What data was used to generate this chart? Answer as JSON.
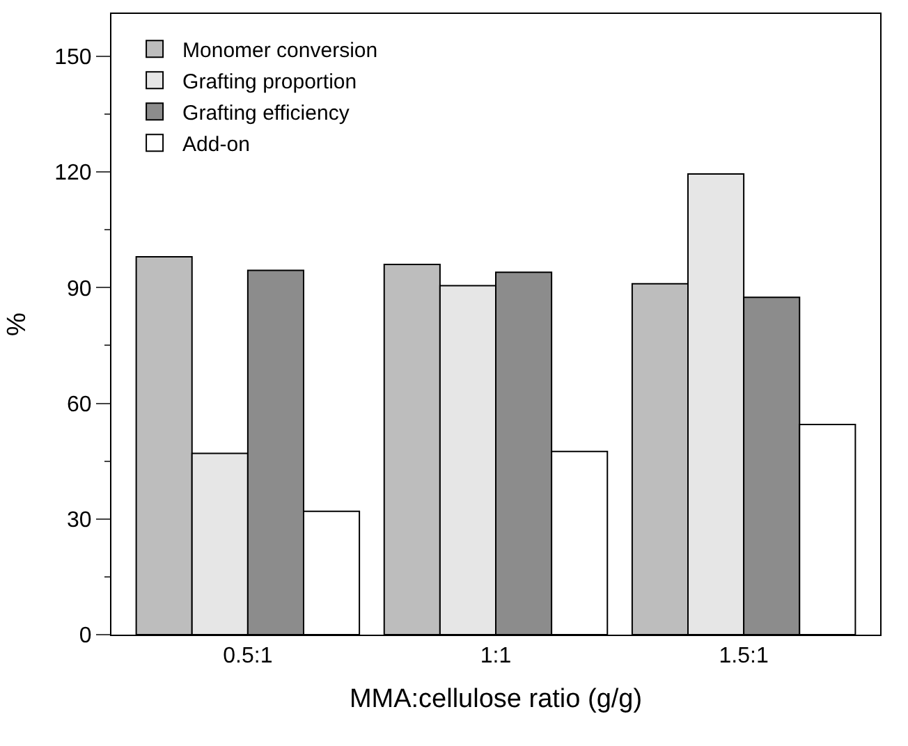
{
  "chart_data": {
    "type": "bar",
    "xlabel": "MMA:cellulose ratio (g/g)",
    "ylabel": "%",
    "categories": [
      "0.5:1",
      "1:1",
      "1.5:1"
    ],
    "series": [
      {
        "name": "Monomer conversion",
        "color": "#bdbdbd",
        "values": [
          98,
          96,
          91
        ]
      },
      {
        "name": "Grafting proportion",
        "color": "#e6e6e6",
        "values": [
          47,
          90.5,
          119.5
        ]
      },
      {
        "name": "Grafting efficiency",
        "color": "#8c8c8c",
        "values": [
          94.5,
          94,
          87.5
        ]
      },
      {
        "name": "Add-on",
        "color": "#ffffff",
        "values": [
          32,
          47.5,
          54.5
        ]
      }
    ],
    "ylim": [
      0,
      161
    ],
    "yticks": [
      0,
      30,
      60,
      90,
      120,
      150
    ],
    "legend": "top left"
  }
}
